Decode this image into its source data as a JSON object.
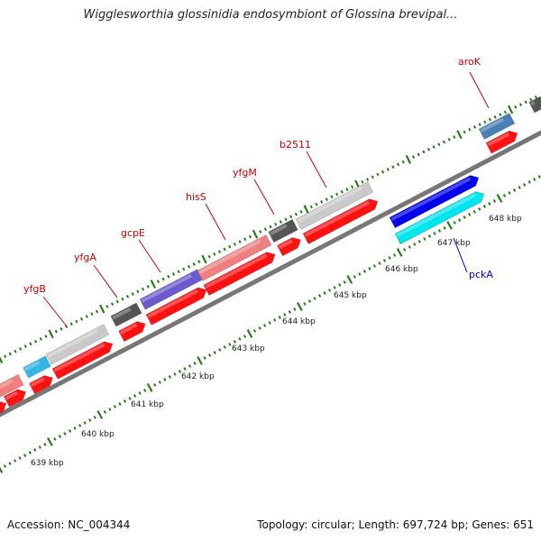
{
  "title": "Wigglesworthia glossinidia endosymbiont of Glossina brevipal...",
  "footer": {
    "accession": "Accession: NC_004344",
    "info": "Topology: circular; Length: 697,724 bp; Genes: 651"
  },
  "scale_unit": "kbp",
  "kbp_labels": [
    "639 kbp",
    "640 kbp",
    "641 kbp",
    "642 kbp",
    "643 kbp",
    "644 kbp",
    "645 kbp",
    "646 kbp",
    "647 kbp",
    "648 kbp"
  ],
  "gene_labels": [
    {
      "name": "yfgB",
      "color": "#cc0000"
    },
    {
      "name": "yfgA",
      "color": "#cc0000"
    },
    {
      "name": "gcpE",
      "color": "#cc0000"
    },
    {
      "name": "hisS",
      "color": "#cc0000"
    },
    {
      "name": "yfgM",
      "color": "#cc0000"
    },
    {
      "name": "b2511",
      "color": "#cc0000"
    },
    {
      "name": "aroK",
      "color": "#cc0000"
    },
    {
      "name": "pckA",
      "color": "#0000cc"
    }
  ],
  "colors": {
    "backbone": "#777777",
    "tick": "#2a7a1a",
    "cds_red": "#ff1111",
    "light_gray": "#c9c9c9",
    "dark_gray": "#555555",
    "pink": "#f08080",
    "purple": "#6a5acd",
    "sky": "#33b5e5",
    "steel": "#4a7fb5",
    "blue": "#0000ee",
    "cyan": "#00e5ee"
  }
}
